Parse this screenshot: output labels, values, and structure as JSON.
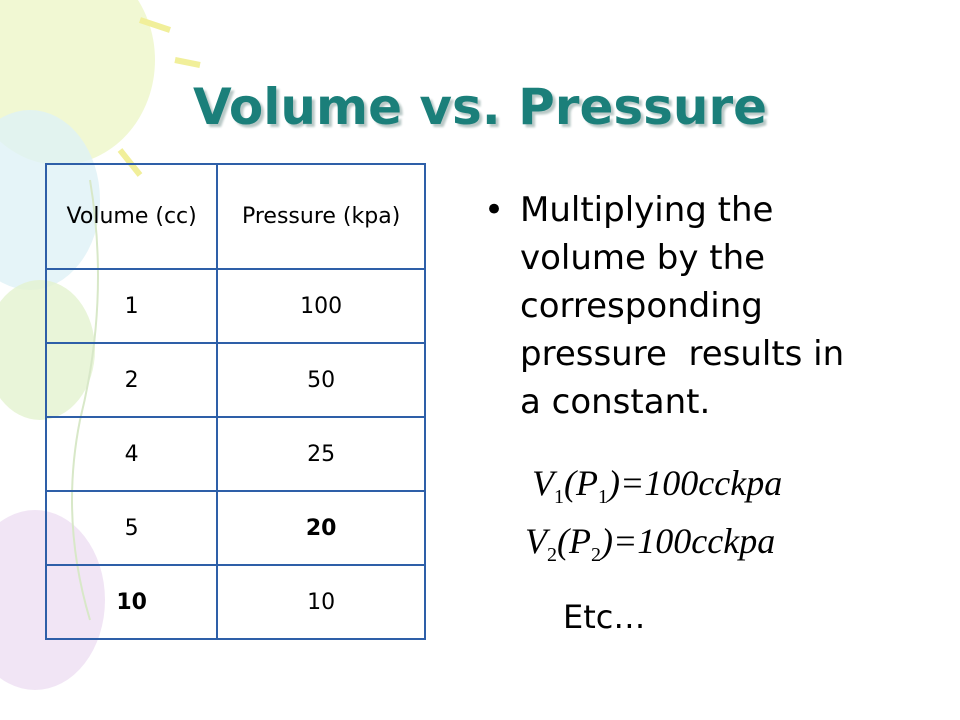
{
  "title": "Volume vs. Pressure",
  "table": {
    "header": [
      "Volume (cc)",
      "Pressure (kpa)"
    ],
    "rows": [
      [
        "1",
        "100"
      ],
      [
        "2",
        "50"
      ],
      [
        "4",
        "25"
      ],
      [
        "5",
        "20"
      ],
      [
        "10",
        "10"
      ]
    ]
  },
  "bullet": "Multiplying the volume by the corresponding pressure  results in a constant.",
  "equations": [
    [
      "V",
      "1",
      "(P",
      "1",
      ")=100cckpa"
    ],
    [
      "V",
      "2",
      "(P",
      "2",
      ")=100cckpa"
    ]
  ],
  "etc": "Etc…"
}
